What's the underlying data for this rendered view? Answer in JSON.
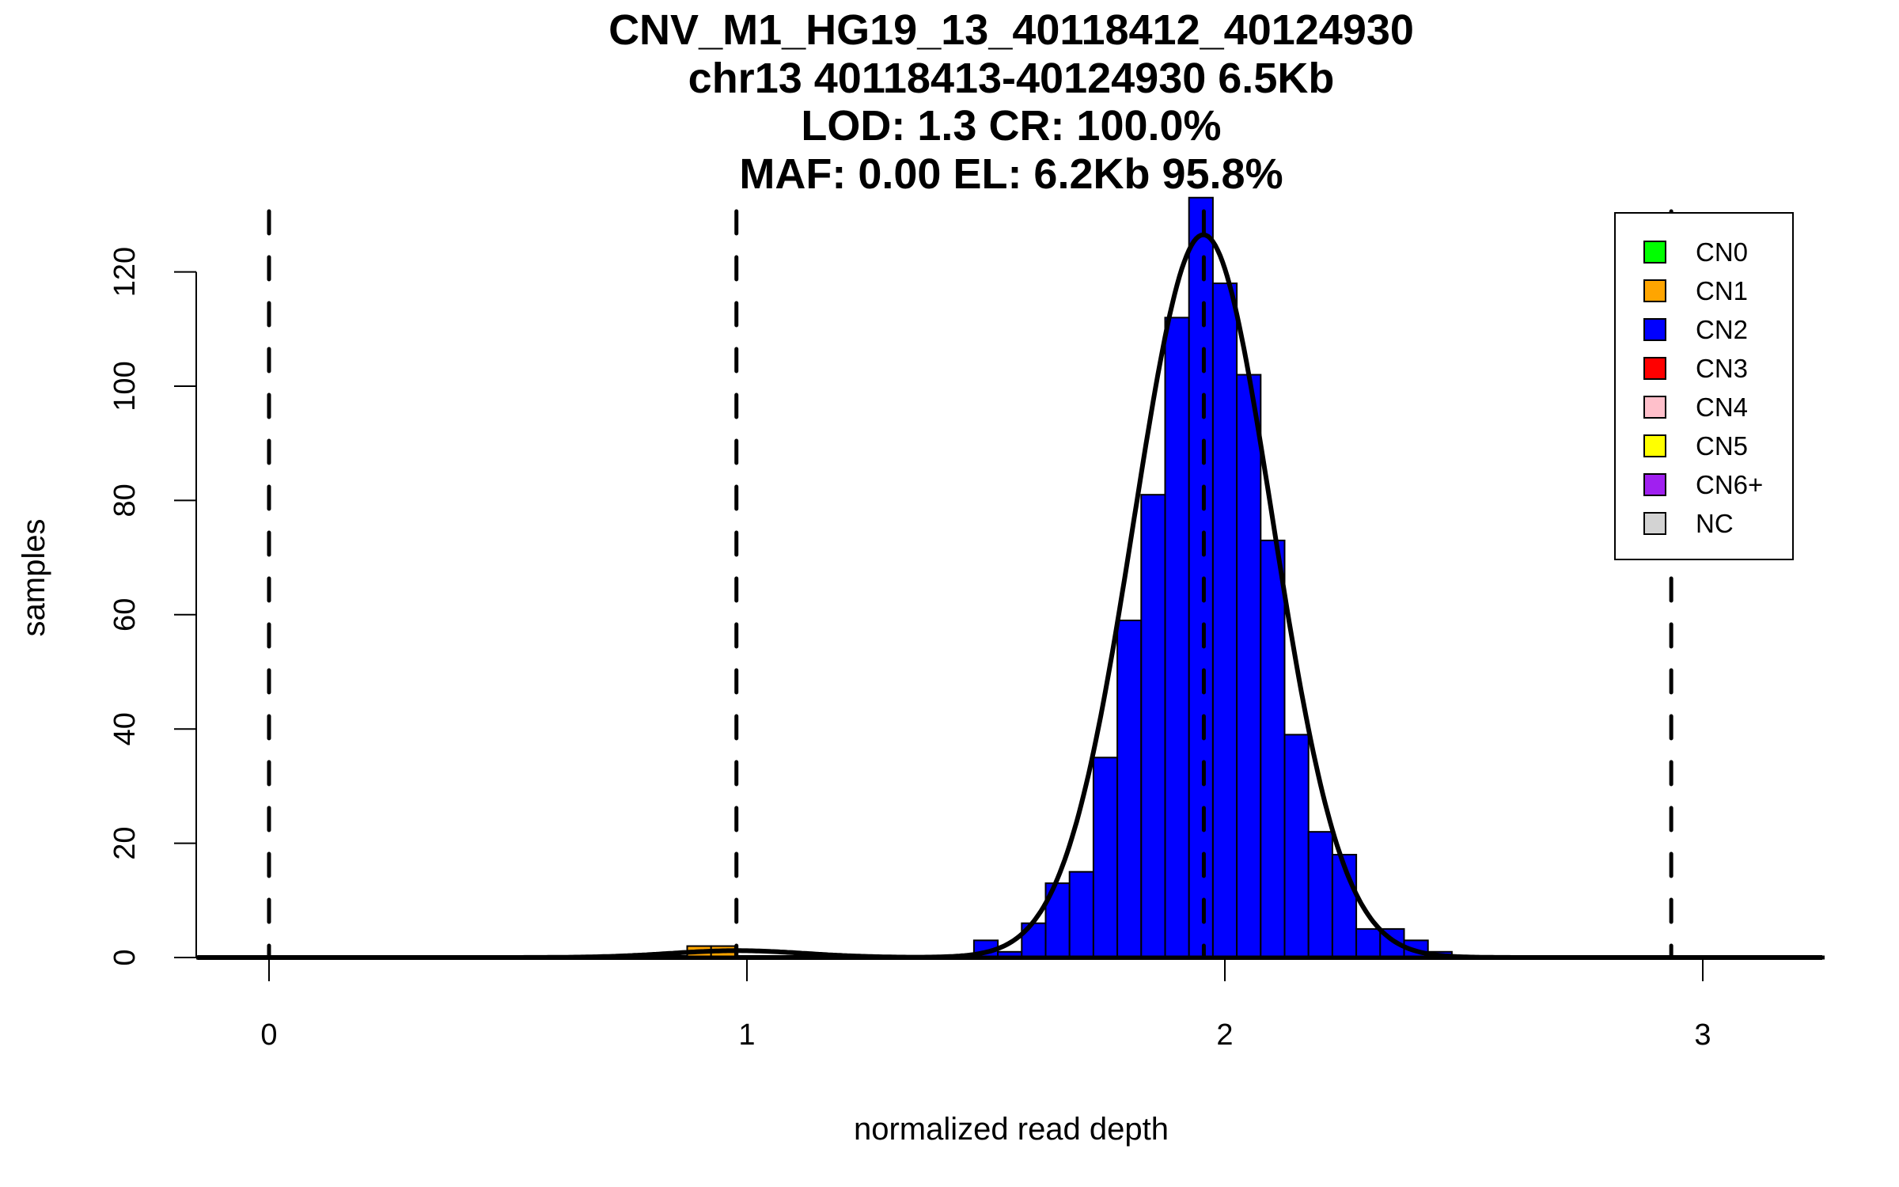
{
  "chart_data": {
    "type": "bar",
    "title_lines": [
      "CNV_M1_HG19_13_40118412_40124930",
      "chr13 40118413-40124930 6.5Kb",
      "LOD: 1.3 CR: 100.0%",
      "MAF: 0.00 EL: 6.2Kb 95.8%"
    ],
    "xlabel": "normalized read depth",
    "ylabel": "samples",
    "xlim": [
      -0.15,
      3.25
    ],
    "ylim": [
      0,
      120
    ],
    "x_ticks": [
      "0",
      "1",
      "2",
      "3"
    ],
    "x_tick_values": [
      0,
      1,
      2,
      3
    ],
    "y_ticks": [
      "0",
      "20",
      "40",
      "60",
      "80",
      "100",
      "120"
    ],
    "y_tick_values": [
      0,
      20,
      40,
      60,
      80,
      100,
      120
    ],
    "bin_width": 0.05,
    "series": [
      {
        "name": "CN1",
        "color": "#ffa500",
        "bins": [
          0.9,
          0.95
        ],
        "values": [
          2,
          2
        ]
      },
      {
        "name": "CN2",
        "color": "#0000ff",
        "bins": [
          1.5,
          1.55,
          1.6,
          1.65,
          1.7,
          1.75,
          1.8,
          1.85,
          1.9,
          1.95,
          2.0,
          2.05,
          2.1,
          2.15,
          2.2,
          2.25,
          2.3,
          2.35,
          2.4,
          2.45
        ],
        "values": [
          3,
          1,
          6,
          13,
          15,
          35,
          59,
          81,
          112,
          133,
          118,
          102,
          73,
          39,
          22,
          18,
          5,
          5,
          3,
          1
        ]
      }
    ],
    "empty_histogram_ranges": [
      [
        -0.15,
        0.17
      ],
      [
        0.6,
        1.36
      ],
      [
        1.42,
        1.5
      ],
      [
        2.5,
        3.12
      ]
    ],
    "fit_components": [
      {
        "mean": 0.98,
        "sd": 0.14,
        "peak": 1.2
      },
      {
        "mean": 1.955,
        "sd": 0.145,
        "peak": 126.5
      }
    ],
    "threshold_lines": [
      0.0,
      0.978,
      1.956,
      2.934
    ],
    "legend": {
      "placement": "top-right",
      "entries": [
        {
          "label": "CN0",
          "color": "#00ff00"
        },
        {
          "label": "CN1",
          "color": "#ffa500"
        },
        {
          "label": "CN2",
          "color": "#0000ff"
        },
        {
          "label": "CN3",
          "color": "#ff0000"
        },
        {
          "label": "CN4",
          "color": "#ffc0cb"
        },
        {
          "label": "CN5",
          "color": "#ffff00"
        },
        {
          "label": "CN6+",
          "color": "#a020f0"
        },
        {
          "label": "NC",
          "color": "#d3d3d3"
        }
      ]
    }
  }
}
